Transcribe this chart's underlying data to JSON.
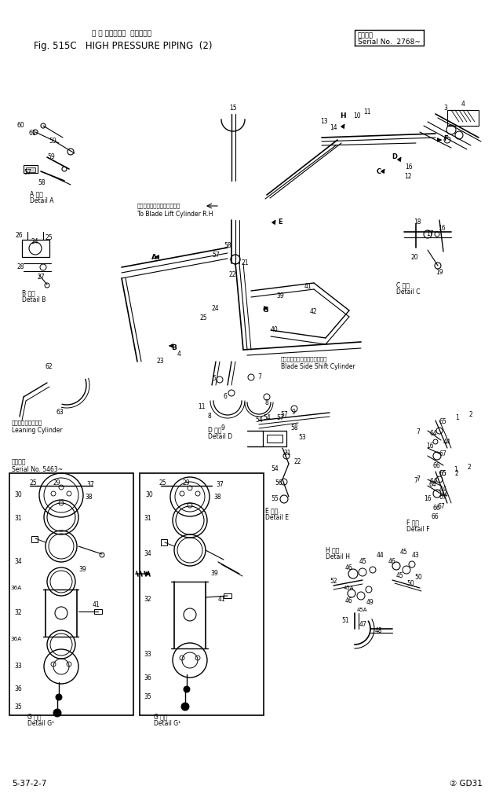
{
  "title_jp": "ハ イ ブレッシャ  ハイピング",
  "title_main": "Fig. 515C   HIGH PRESSURE PIPING  (2)",
  "serial_label": "適用号機",
  "serial_no": "Serial No.  2768~",
  "footer_left": "5-37-2-7",
  "footer_right": "② GD31",
  "serial_5463": "適用号機",
  "serial_5463b": "Serial No. 5463~",
  "detail_a_jp": "A 詳細",
  "detail_a": "Detail A",
  "detail_b_jp": "B 詳細",
  "detail_b": "Detail B",
  "detail_c_jp": "C 詳細",
  "detail_c": "Detail C",
  "detail_d_jp": "D 詳細",
  "detail_d": "Detail D",
  "detail_e_jp": "E 詳細.",
  "detail_e": "Detail E",
  "detail_f_jp": "F 詳細",
  "detail_f": "Detail F",
  "detail_g1_jp": "G 詳細",
  "detail_g1": "Detail G¹",
  "detail_h_jp": "H 詳細",
  "detail_h": "Detail H",
  "leaning_jp": "リーニングシリンダ",
  "leaning_en": "Leaning Cylinder",
  "blade_lift_jp": "ブレードリフトシリンダ右へ",
  "blade_lift_en": "To Blade Lift Cylinder R.H",
  "blade_side_jp": "ブレードサイドシフトシリンダ",
  "blade_side_en": "Blade Side Shift Cylinder"
}
